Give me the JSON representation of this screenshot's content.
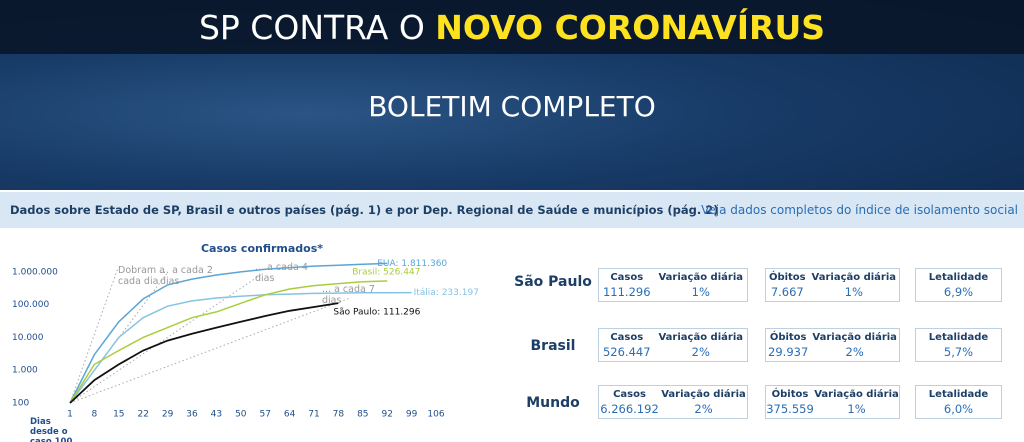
{
  "header": {
    "title_part1": "SP CONTRA O",
    "title_part2": "NOVO CORONAVÍRUS",
    "subtitle": "BOLETIM COMPLETO"
  },
  "nav": {
    "left": "Dados sobre Estado de SP, Brasil e outros países (pág. 1) e por Dep. Regional de Saúde e municípios (pág. 2)",
    "right": "Veja dados completos do índice de isolamento social"
  },
  "chart_data": {
    "type": "line",
    "title": "Casos confirmados*",
    "x_label": "Dias desde o caso 100",
    "log_y": true,
    "x": [
      1,
      8,
      15,
      22,
      29,
      36,
      43,
      50,
      57,
      64,
      71,
      78,
      85,
      92,
      99
    ],
    "series": [
      {
        "label": "EUA: 1.811.360",
        "color": "#5aa5d6",
        "values": [
          100,
          3000,
          30000,
          150000,
          400000,
          600000,
          800000,
          1000000,
          1200000,
          1350000,
          1500000,
          1600000,
          1700000,
          1811360,
          null
        ]
      },
      {
        "label": "Itália: 233.197",
        "color": "#86c3e3",
        "values": [
          100,
          1000,
          10000,
          40000,
          90000,
          130000,
          160000,
          180000,
          200000,
          210000,
          220000,
          225000,
          230000,
          232000,
          233197
        ]
      },
      {
        "label": "Brasil: 526.447",
        "color": "#a9cd3c",
        "values": [
          100,
          1500,
          4000,
          10000,
          20000,
          40000,
          60000,
          110000,
          200000,
          300000,
          380000,
          440000,
          500000,
          526447,
          null
        ]
      },
      {
        "label": "São Paulo: 111.296",
        "color": "#111111",
        "values": [
          100,
          500,
          1500,
          4000,
          8000,
          13000,
          20000,
          30000,
          45000,
          65000,
          85000,
          111296,
          null,
          null,
          null
        ]
      }
    ],
    "annotations": [
      "Dobram a cada dia",
      "... a cada 2 dias",
      "... a cada 4 dias",
      "... a cada 7 dias"
    ],
    "xlim": [
      1,
      106
    ],
    "xticks": [
      1,
      8,
      15,
      22,
      29,
      36,
      43,
      50,
      57,
      64,
      71,
      78,
      85,
      92,
      99,
      106
    ],
    "ylim": [
      100,
      2000000
    ],
    "yticks": [
      100,
      {
        "value": 1000,
        "label": "1.000"
      },
      {
        "value": 10000,
        "label": "10.000"
      },
      {
        "value": 100000,
        "label": "100.000"
      },
      {
        "value": 1000000,
        "label": "1.000.000"
      }
    ]
  },
  "stats": [
    {
      "region": "São Paulo",
      "cards": [
        [
          {
            "label": "Casos",
            "value": "111.296"
          },
          {
            "label": "Variação diária",
            "value": "1%"
          }
        ],
        [
          {
            "label": "Óbitos",
            "value": "7.667"
          },
          {
            "label": "Variação diária",
            "value": "1%"
          }
        ],
        [
          {
            "label": "Letalidade",
            "value": "6,9%"
          }
        ]
      ]
    },
    {
      "region": "Brasil",
      "cards": [
        [
          {
            "label": "Casos",
            "value": "526.447"
          },
          {
            "label": "Variação diária",
            "value": "2%"
          }
        ],
        [
          {
            "label": "Óbitos",
            "value": "29.937"
          },
          {
            "label": "Variação diária",
            "value": "2%"
          }
        ],
        [
          {
            "label": "Letalidade",
            "value": "5,7%"
          }
        ]
      ]
    },
    {
      "region": "Mundo",
      "cards": [
        [
          {
            "label": "Casos",
            "value": "6.266.192"
          },
          {
            "label": "Variação diária",
            "value": "2%"
          }
        ],
        [
          {
            "label": "Óbitos",
            "value": "375.559"
          },
          {
            "label": "Variação diária",
            "value": "1%"
          }
        ],
        [
          {
            "label": "Letalidade",
            "value": "6,0%"
          }
        ]
      ]
    }
  ]
}
